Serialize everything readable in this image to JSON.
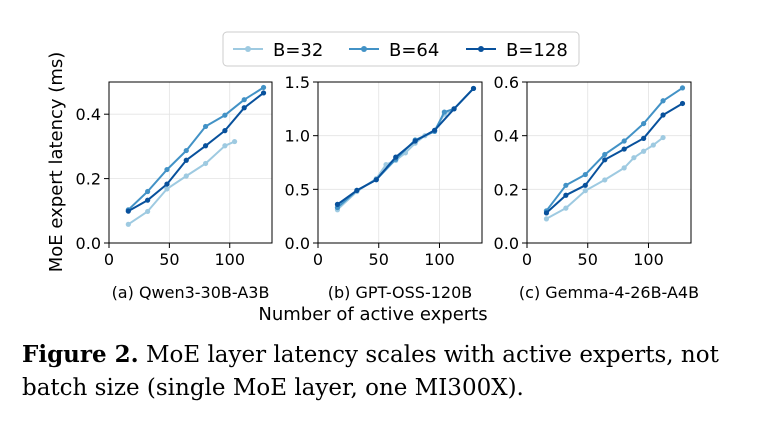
{
  "legend": [
    {
      "name": "B=32",
      "color": "#9ecae1"
    },
    {
      "name": "B=64",
      "color": "#4292c6"
    },
    {
      "name": "B=128",
      "color": "#08519c"
    }
  ],
  "ylabel": "MoE expert latency (ms)",
  "xlabel": "Number of active experts",
  "caption": {
    "label": "Figure 2.",
    "text": " MoE layer latency scales with active experts, not batch size (single MoE layer, one MI300X)."
  },
  "chart_data": [
    {
      "type": "line",
      "title": "(a) Qwen3-30B-A3B",
      "xlim": [
        0,
        135
      ],
      "ylim": [
        0,
        0.5
      ],
      "xticks": [
        0,
        50,
        100
      ],
      "yticks": [
        0.0,
        0.2,
        0.4
      ],
      "ytick_labels": [
        "0.0",
        "0.2",
        "0.4"
      ],
      "grid": true,
      "series": [
        {
          "name": "B=32",
          "x": [
            16,
            32,
            48,
            64,
            80,
            96,
            104
          ],
          "y": [
            0.058,
            0.098,
            0.168,
            0.208,
            0.247,
            0.302,
            0.315
          ]
        },
        {
          "name": "B=64",
          "x": [
            16,
            32,
            48,
            64,
            80,
            96,
            112,
            128
          ],
          "y": [
            0.103,
            0.16,
            0.228,
            0.287,
            0.362,
            0.397,
            0.445,
            0.483
          ]
        },
        {
          "name": "B=128",
          "x": [
            16,
            32,
            48,
            64,
            80,
            96,
            112,
            128
          ],
          "y": [
            0.099,
            0.133,
            0.183,
            0.257,
            0.302,
            0.349,
            0.42,
            0.466
          ]
        }
      ]
    },
    {
      "type": "line",
      "title": "(b) GPT-OSS-120B",
      "xlim": [
        0,
        135
      ],
      "ylim": [
        0,
        1.5
      ],
      "xticks": [
        0,
        50,
        100
      ],
      "yticks": [
        0.0,
        0.5,
        1.0,
        1.5
      ],
      "ytick_labels": [
        "0.0",
        "0.5",
        "1.0",
        "1.5"
      ],
      "grid": true,
      "series": [
        {
          "name": "B=32",
          "x": [
            16,
            32,
            48,
            56,
            64,
            72,
            80,
            88,
            96,
            104,
            112
          ],
          "y": [
            0.31,
            0.48,
            0.6,
            0.73,
            0.77,
            0.84,
            0.93,
            1.0,
            1.05,
            1.2,
            1.25
          ]
        },
        {
          "name": "B=64",
          "x": [
            16,
            32,
            48,
            64,
            80,
            96,
            104,
            112,
            128
          ],
          "y": [
            0.33,
            0.49,
            0.59,
            0.78,
            0.96,
            1.04,
            1.22,
            1.25,
            1.44
          ]
        },
        {
          "name": "B=128",
          "x": [
            16,
            32,
            48,
            64,
            80,
            96,
            112,
            128
          ],
          "y": [
            0.36,
            0.49,
            0.59,
            0.8,
            0.95,
            1.05,
            1.25,
            1.44
          ]
        }
      ]
    },
    {
      "type": "line",
      "title": "(c) Gemma-4-26B-A4B",
      "xlim": [
        0,
        135
      ],
      "ylim": [
        0,
        0.6
      ],
      "xticks": [
        0,
        50,
        100
      ],
      "yticks": [
        0.0,
        0.2,
        0.4,
        0.6
      ],
      "ytick_labels": [
        "0.0",
        "0.2",
        "0.4",
        "0.6"
      ],
      "grid": true,
      "series": [
        {
          "name": "B=32",
          "x": [
            16,
            32,
            48,
            64,
            80,
            88,
            96,
            104,
            112
          ],
          "y": [
            0.09,
            0.13,
            0.195,
            0.235,
            0.28,
            0.318,
            0.342,
            0.365,
            0.393
          ]
        },
        {
          "name": "B=64",
          "x": [
            16,
            32,
            48,
            64,
            80,
            96,
            112,
            128
          ],
          "y": [
            0.12,
            0.215,
            0.255,
            0.33,
            0.38,
            0.445,
            0.53,
            0.578
          ]
        },
        {
          "name": "B=128",
          "x": [
            16,
            32,
            48,
            64,
            80,
            96,
            112,
            128
          ],
          "y": [
            0.112,
            0.178,
            0.215,
            0.31,
            0.35,
            0.39,
            0.477,
            0.52
          ]
        }
      ]
    }
  ]
}
